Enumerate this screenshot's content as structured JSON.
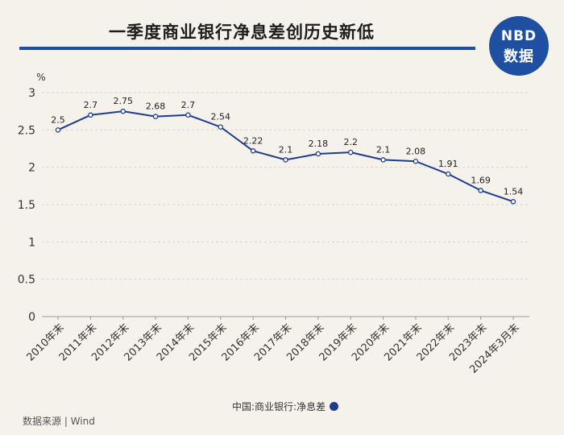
{
  "header": {
    "title": "一季度商业银行净息差创历史新低",
    "logo_line1": "NBD",
    "logo_line2": "数据"
  },
  "footer": {
    "source": "数据来源 | Wind"
  },
  "colors": {
    "brand": "#1f4fa0",
    "line": "#1f3c8f",
    "background": "#f5f2ec",
    "grid": "#d9d5cf"
  },
  "chart_data": {
    "type": "line",
    "title": "一季度商业银行净息差创历史新低",
    "ylabel": "%",
    "xlabel": "",
    "ylim": [
      0,
      3
    ],
    "yticks": [
      0,
      0.5,
      1,
      1.5,
      2,
      2.5,
      3
    ],
    "ytick_labels": [
      "0",
      "0.5",
      "1",
      "1.5",
      "2",
      "2.5",
      "3"
    ],
    "grid": "horizontal dashed",
    "legend_position": "bottom-center",
    "categories": [
      "2010年末",
      "2011年末",
      "2012年末",
      "2013年末",
      "2014年末",
      "2015年末",
      "2016年末",
      "2017年末",
      "2018年末",
      "2019年末",
      "2020年末",
      "2021年末",
      "2022年末",
      "2023年末",
      "2024年3月末"
    ],
    "series": [
      {
        "name": "中国:商业银行:净息差",
        "values": [
          2.5,
          2.7,
          2.75,
          2.68,
          2.7,
          2.54,
          2.22,
          2.1,
          2.18,
          2.2,
          2.1,
          2.08,
          1.91,
          1.69,
          1.54
        ],
        "value_labels": [
          "2.5",
          "2.7",
          "2.75",
          "2.68",
          "2.7",
          "2.54",
          "2.22",
          "2.1",
          "2.18",
          "2.2",
          "2.1",
          "2.08",
          "1.91",
          "1.69",
          "1.54"
        ]
      }
    ]
  }
}
